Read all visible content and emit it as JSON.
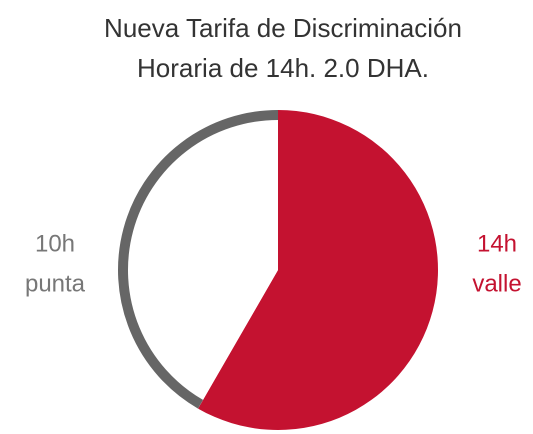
{
  "chart_data": {
    "type": "pie",
    "title": [
      "Nueva Tarifa de Discriminación",
      "Horaria de 14h. 2.0 DHA."
    ],
    "categories": [
      "valle",
      "punta"
    ],
    "values": [
      14,
      10
    ],
    "value_labels": [
      "14h",
      "10h"
    ],
    "colors": [
      "#c41230",
      "#666666"
    ],
    "styles": [
      "fill",
      "outline"
    ]
  }
}
